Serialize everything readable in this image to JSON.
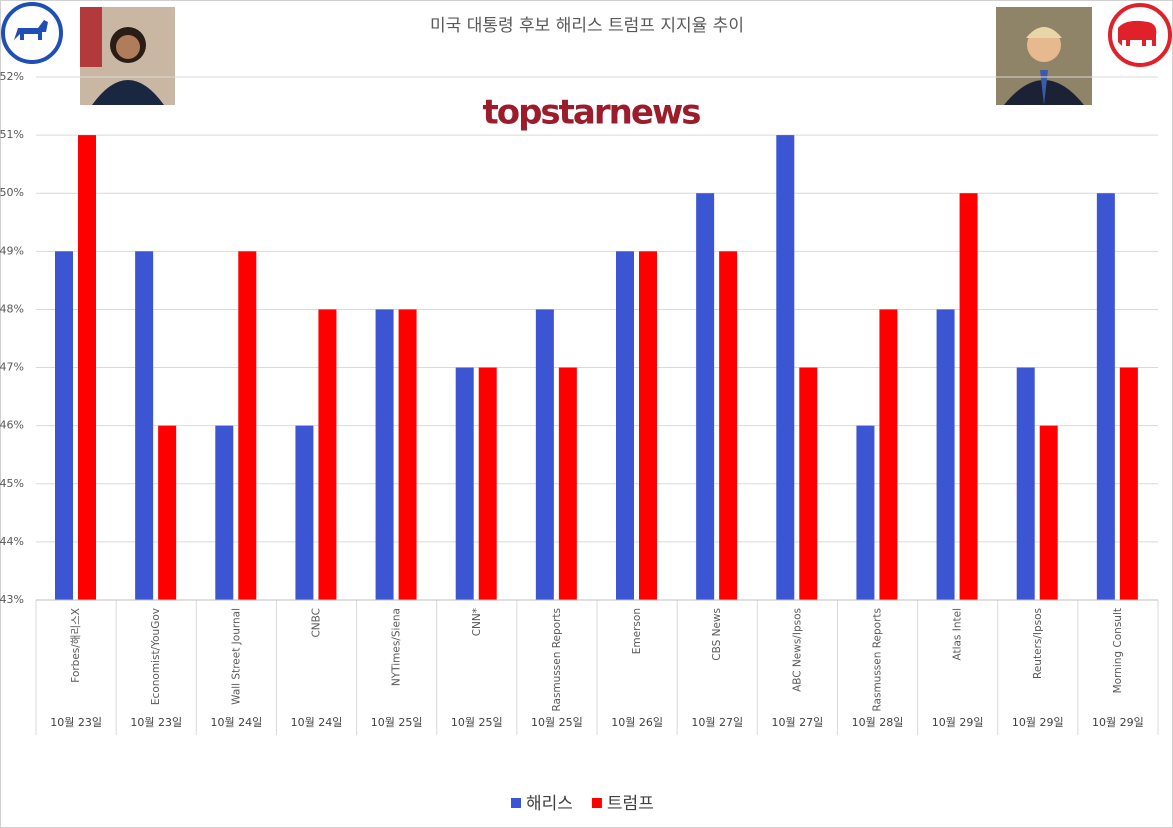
{
  "chart_data": {
    "type": "bar",
    "title": "미국 대통령 후보 해리스 트럼프 지지율 추이",
    "watermark": "topstarnews",
    "categories": [
      "Forbes/해리스X",
      "Economist/YouGov",
      "Wall Street Journal",
      "CNBC",
      "NYTimes/Siena",
      "CNN*",
      "Rasmussen Reports",
      "Emerson",
      "CBS News",
      "ABC News/Ipsos",
      "Rasmussen Reports",
      "Atlas Intel",
      "Reuters/Ipsos",
      "Morning Consult"
    ],
    "dates": [
      "10월 23일",
      "10월 23일",
      "10월 24일",
      "10월 24일",
      "10월 25일",
      "10월 25일",
      "10월 25일",
      "10월 26일",
      "10월 27일",
      "10월 27일",
      "10월 28일",
      "10월 29일",
      "10월 29일",
      "10월 29일"
    ],
    "series": [
      {
        "name": "해리스",
        "color": "#3b55d3",
        "values": [
          49,
          49,
          46,
          46,
          48,
          47,
          48,
          49,
          50,
          51,
          46,
          48,
          47,
          50
        ]
      },
      {
        "name": "트럼프",
        "color": "#ff0000",
        "values": [
          51,
          46,
          49,
          48,
          48,
          47,
          47,
          49,
          49,
          47,
          48,
          50,
          46,
          47
        ]
      }
    ],
    "ylim": [
      43,
      52
    ],
    "yticks": [
      {
        "value": 43,
        "label": "43%"
      },
      {
        "value": 44,
        "label": "44%"
      },
      {
        "value": 45,
        "label": "45%"
      },
      {
        "value": 46,
        "label": "46%"
      },
      {
        "value": 47,
        "label": "47%"
      },
      {
        "value": 48,
        "label": "48%"
      },
      {
        "value": 49,
        "label": "49%"
      },
      {
        "value": 50,
        "label": "50%"
      },
      {
        "value": 51,
        "label": "51%"
      },
      {
        "value": 52,
        "label": "52%"
      }
    ],
    "grid": true,
    "legend": "bottom"
  }
}
